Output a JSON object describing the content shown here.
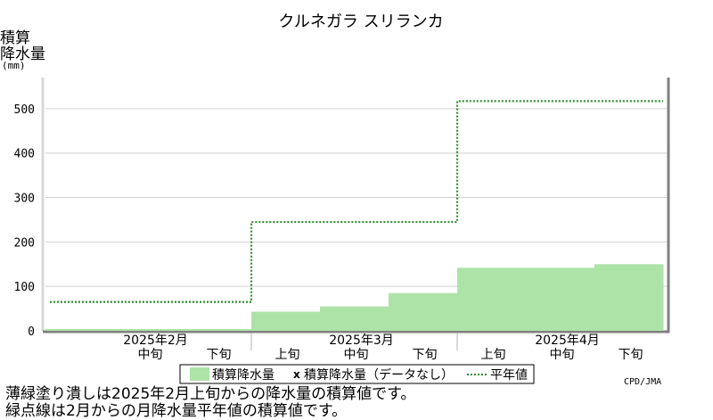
{
  "chart_data": {
    "type": "bar",
    "title": "クルネガラ スリランカ",
    "ylabel_lines": [
      "積算",
      "降水量",
      "(mm)"
    ],
    "ylim": [
      0,
      570
    ],
    "yticks": [
      0,
      100,
      200,
      300,
      400,
      500
    ],
    "grid": true,
    "categories": [
      "2月上旬",
      "2月中旬",
      "2月下旬",
      "3月上旬",
      "3月中旬",
      "3月下旬",
      "4月上旬",
      "4月中旬",
      "4月下旬"
    ],
    "period_labels": [
      "",
      "中旬",
      "下旬",
      "上旬",
      "中旬",
      "下旬",
      "上旬",
      "中旬",
      "下旬"
    ],
    "month_labels": [
      {
        "text": "2025年2月",
        "start": 0
      },
      {
        "text": "2025年3月",
        "start": 3
      },
      {
        "text": "2025年4月",
        "start": 6
      }
    ],
    "series": [
      {
        "name": "積算降水量",
        "type": "bar",
        "color": "#aee3a8",
        "values": [
          4,
          4,
          4,
          43,
          55,
          85,
          142,
          142,
          150
        ]
      },
      {
        "name": "積算降水量平年値",
        "type": "step-dotted",
        "color": "#2e8b2e",
        "values": [
          65,
          65,
          65,
          245,
          245,
          245,
          517,
          517,
          517
        ]
      }
    ],
    "legend": {
      "placement": "bottom-center",
      "items": [
        "積算降水量",
        "積算降水量（データなし）",
        "平年値"
      ],
      "missing_marker": "x"
    },
    "credit": "CPD/JMA"
  },
  "notes": [
    "薄緑塗り潰しは2025年2月上旬からの降水量の積算値です。",
    "緑点線は2月からの月降水量平年値の積算値です。"
  ]
}
